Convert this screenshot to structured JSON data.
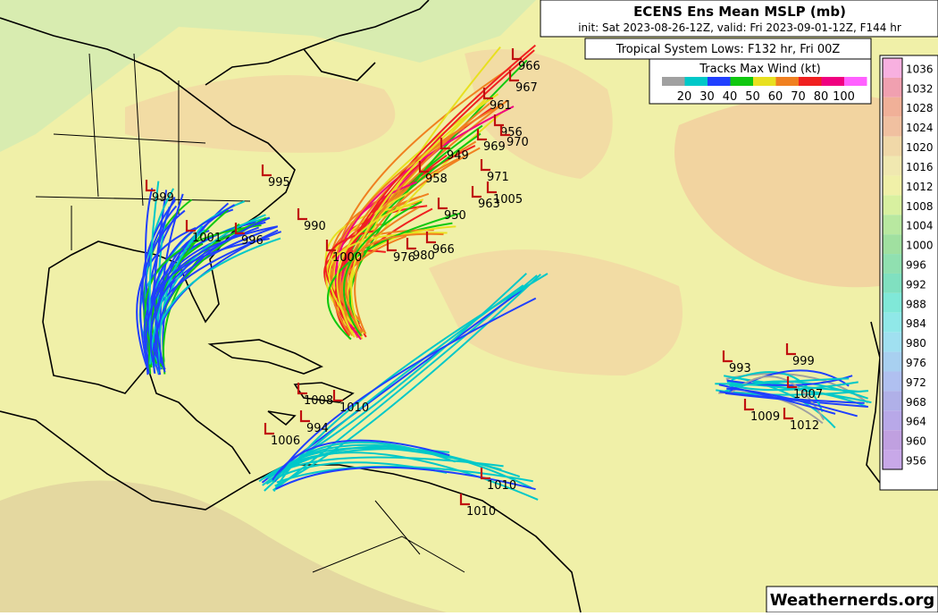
{
  "header": {
    "title": "ECENS Ens Mean MSLP (mb)",
    "subtitle": "init: Sat 2023-08-26-12Z, valid: Fri 2023-09-01-12Z, F144 hr"
  },
  "info": "Tropical System Lows: F132 hr, Fri 00Z",
  "wind_legend": {
    "title": "Tracks Max Wind (kt)",
    "labels": [
      "20",
      "30",
      "40",
      "50",
      "60",
      "70",
      "80",
      "100"
    ],
    "colors": [
      "#a0a0a0",
      "#00c8c8",
      "#2040ff",
      "#10c810",
      "#e8e020",
      "#f08020",
      "#f02020",
      "#f00080",
      "#ff60ff"
    ]
  },
  "pressure_scale": {
    "labels": [
      "1036",
      "1032",
      "1028",
      "1024",
      "1020",
      "1016",
      "1012",
      "1008",
      "1004",
      "1000",
      "996",
      "992",
      "988",
      "984",
      "980",
      "976",
      "972",
      "968",
      "964",
      "960",
      "956"
    ],
    "colors": [
      "#f8b0e0",
      "#f0a0b0",
      "#f0b098",
      "#f0c0a0",
      "#f0d8a8",
      "#f0e8b0",
      "#f0f0a8",
      "#d8f0a0",
      "#b8e8a0",
      "#a0e0a0",
      "#90e0b0",
      "#80e0c0",
      "#80e8d8",
      "#90e8e8",
      "#a0e0f0",
      "#a8d0f0",
      "#b0c0f0",
      "#b0b0e8",
      "#b8a8e8",
      "#c0a0e0",
      "#c8a8e8"
    ]
  },
  "low_labels": [
    "966",
    "967",
    "961",
    "956",
    "970",
    "969",
    "971",
    "963",
    "1005",
    "995",
    "990",
    "999",
    "1001",
    "996",
    "1000",
    "976",
    "980",
    "966",
    "958",
    "949",
    "950",
    "1008",
    "1010",
    "1006",
    "994",
    "1010",
    "1010",
    "993",
    "999",
    "1007",
    "1012",
    "1009"
  ],
  "credit": "Weathernerds.org"
}
